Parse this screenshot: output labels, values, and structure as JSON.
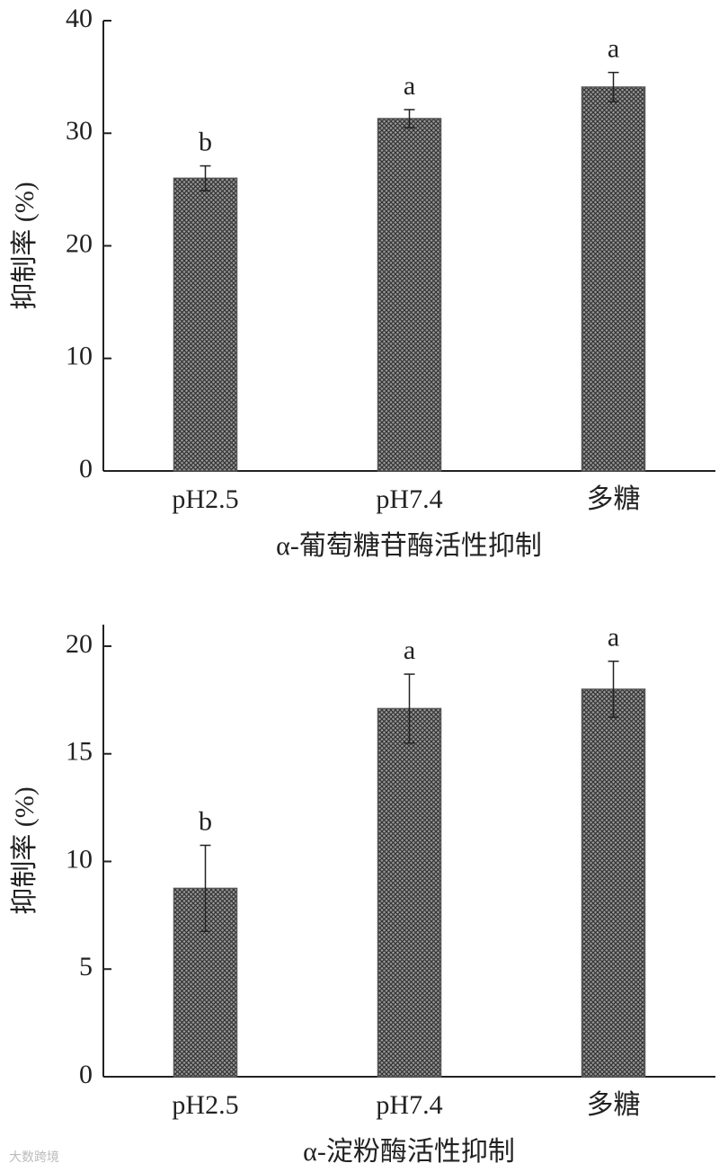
{
  "chart_data": [
    {
      "type": "bar",
      "categories": [
        "pH2.5",
        "pH7.4",
        "多糖"
      ],
      "values": [
        26.0,
        31.3,
        34.1
      ],
      "errors": [
        1.1,
        0.8,
        1.3
      ],
      "annotations": [
        "b",
        "a",
        "a"
      ],
      "color": "#555555",
      "ylim": [
        0,
        40
      ],
      "yticks": [
        0,
        10,
        20,
        30,
        40
      ],
      "ylabel": "抑制率 (%)",
      "xlabel": "α-葡萄糖苷酶活性抑制"
    },
    {
      "type": "bar",
      "categories": [
        "pH2.5",
        "pH7.4",
        "多糖"
      ],
      "values": [
        8.75,
        17.1,
        18.0
      ],
      "errors": [
        2.0,
        1.6,
        1.3
      ],
      "annotations": [
        "b",
        "a",
        "a"
      ],
      "color": "#555555",
      "ylim": [
        0,
        21
      ],
      "yticks": [
        0,
        5,
        10,
        15,
        20
      ],
      "ylabel": "抑制率 (%)",
      "xlabel": "α-淀粉酶活性抑制"
    }
  ],
  "watermark": "大数跨境"
}
